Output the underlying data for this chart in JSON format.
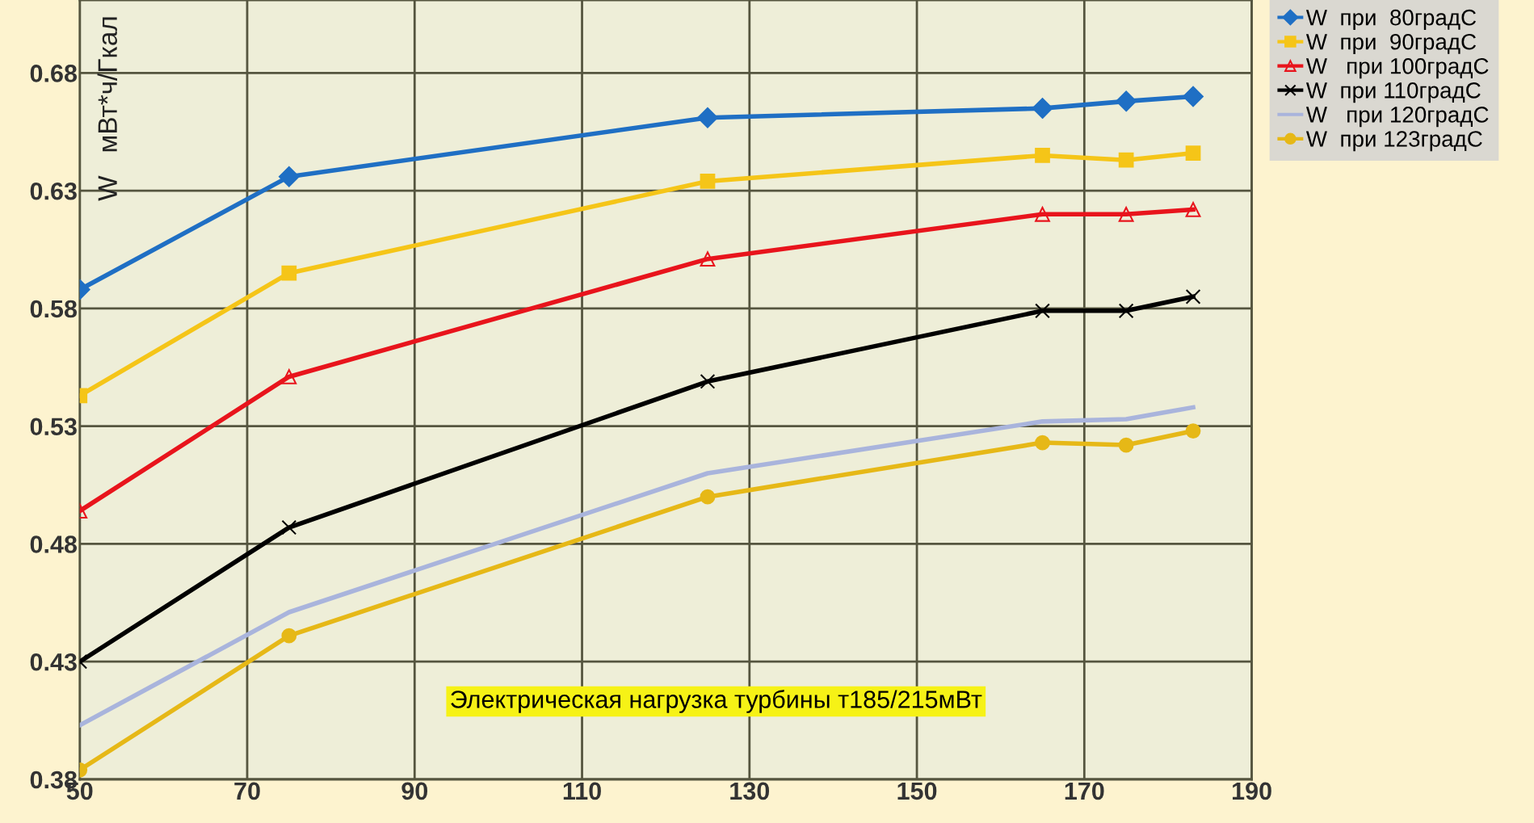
{
  "chart_data": {
    "type": "line",
    "ylabel": "W   мВт*ч/Гкал",
    "annotations": [
      "Электрическая нагрузка турбины т185/215мВт"
    ],
    "x": [
      50,
      75,
      125,
      165,
      175,
      183
    ],
    "series": [
      {
        "name": "W  при  80градС",
        "color": "#1f6fc4",
        "marker": "diamond",
        "values": [
          0.588,
          0.636,
          0.661,
          0.665,
          0.668,
          0.67
        ]
      },
      {
        "name": "W  при  90градС",
        "color": "#f5c518",
        "marker": "square",
        "values": [
          0.543,
          0.595,
          0.634,
          0.645,
          0.643,
          0.646
        ]
      },
      {
        "name": "W   при 100градС",
        "color": "#e8141c",
        "marker": "triangle",
        "values": [
          0.494,
          0.551,
          0.601,
          0.62,
          0.62,
          0.622
        ]
      },
      {
        "name": "W  при 110градС",
        "color": "#000000",
        "marker": "cross",
        "values": [
          0.43,
          0.487,
          0.549,
          0.579,
          0.579,
          0.585
        ]
      },
      {
        "name": "W   при 120градС",
        "color": "#a9b4dc",
        "marker": "none",
        "values": [
          0.403,
          0.451,
          0.51,
          0.532,
          0.533,
          0.538
        ]
      },
      {
        "name": "W  при 123градС",
        "color": "#e6b817",
        "marker": "circle",
        "values": [
          0.384,
          0.441,
          0.5,
          0.523,
          0.522,
          0.528
        ]
      }
    ],
    "xlim": [
      50,
      190
    ],
    "xticks": [
      50,
      70,
      90,
      110,
      130,
      150,
      170,
      190
    ],
    "ylim": [
      0.38,
      0.711
    ],
    "yticks": [
      0.38,
      0.43,
      0.48,
      0.53,
      0.58,
      0.63,
      0.68
    ],
    "grid": true,
    "legend": "right",
    "line_style": "solid"
  }
}
